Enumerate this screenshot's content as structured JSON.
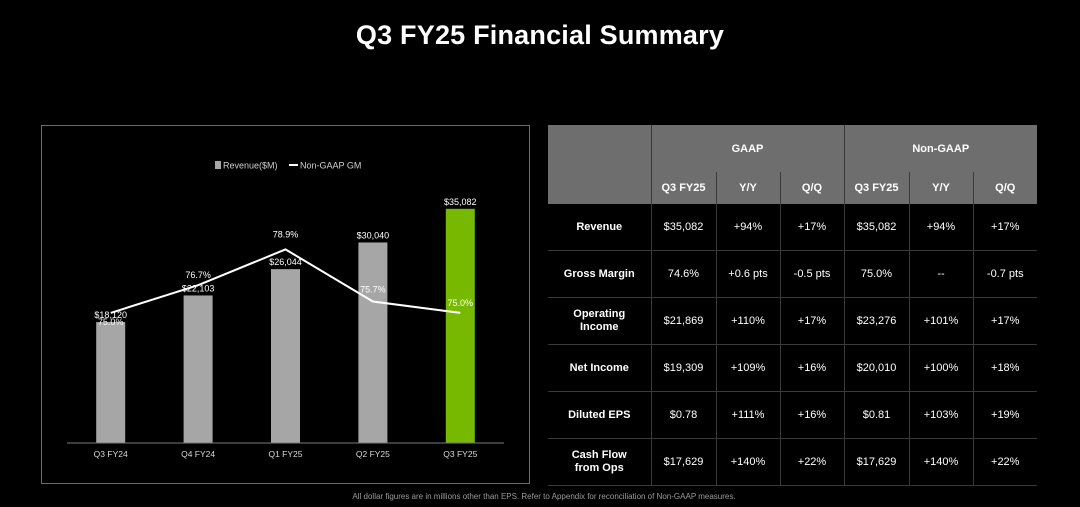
{
  "title": "Q3 FY25 Financial Summary",
  "colors": {
    "bar": "#a6a6a6",
    "bar_highlight": "#76b900",
    "line": "#ffffff",
    "header_bg": "#6e6e6e"
  },
  "chart_data": {
    "type": "bar",
    "categories": [
      "Q3 FY24",
      "Q4 FY24",
      "Q1 FY25",
      "Q2 FY25",
      "Q3 FY25"
    ],
    "legend": [
      "Revenue($M)",
      "Non-GAAP GM"
    ],
    "series": [
      {
        "name": "Revenue($M)",
        "type": "bar",
        "values": [
          18120,
          22103,
          26044,
          30040,
          35082
        ],
        "labels": [
          "$18,120",
          "$22,103",
          "$26,044",
          "$30,040",
          "$35,082"
        ]
      },
      {
        "name": "Non-GAAP GM",
        "type": "line",
        "values": [
          75.0,
          76.7,
          78.9,
          75.7,
          75.0
        ],
        "labels": [
          "75.0%",
          "76.7%",
          "78.9%",
          "75.7%",
          "75.0%"
        ]
      }
    ],
    "highlight_index": 4,
    "ylim": [
      0,
      38500
    ],
    "line_ylim": [
      67,
      82.8
    ],
    "legend_position": "top-center",
    "grid": false
  },
  "table": {
    "groups": [
      "GAAP",
      "Non-GAAP"
    ],
    "columns": [
      "Q3 FY25",
      "Y/Y",
      "Q/Q",
      "Q3 FY25",
      "Y/Y",
      "Q/Q"
    ],
    "rows": [
      {
        "label": [
          "Revenue"
        ],
        "cells": [
          "$35,082",
          "+94%",
          "+17%",
          "$35,082",
          "+94%",
          "+17%"
        ]
      },
      {
        "label": [
          "Gross Margin"
        ],
        "cells": [
          "74.6%",
          "+0.6 pts",
          "-0.5 pts",
          "75.0%",
          "--",
          "-0.7 pts"
        ]
      },
      {
        "label": [
          "Operating",
          "Income"
        ],
        "cells": [
          "$21,869",
          "+110%",
          "+17%",
          "$23,276",
          "+101%",
          "+17%"
        ]
      },
      {
        "label": [
          "Net Income"
        ],
        "cells": [
          "$19,309",
          "+109%",
          "+16%",
          "$20,010",
          "+100%",
          "+18%"
        ]
      },
      {
        "label": [
          "Diluted EPS"
        ],
        "cells": [
          "$0.78",
          "+111%",
          "+16%",
          "$0.81",
          "+103%",
          "+19%"
        ]
      },
      {
        "label": [
          "Cash Flow",
          "from Ops"
        ],
        "cells": [
          "$17,629",
          "+140%",
          "+22%",
          "$17,629",
          "+140%",
          "+22%"
        ]
      }
    ]
  },
  "footnote": "All dollar figures are in millions other than EPS. Refer to Appendix for reconciliation of Non-GAAP measures."
}
